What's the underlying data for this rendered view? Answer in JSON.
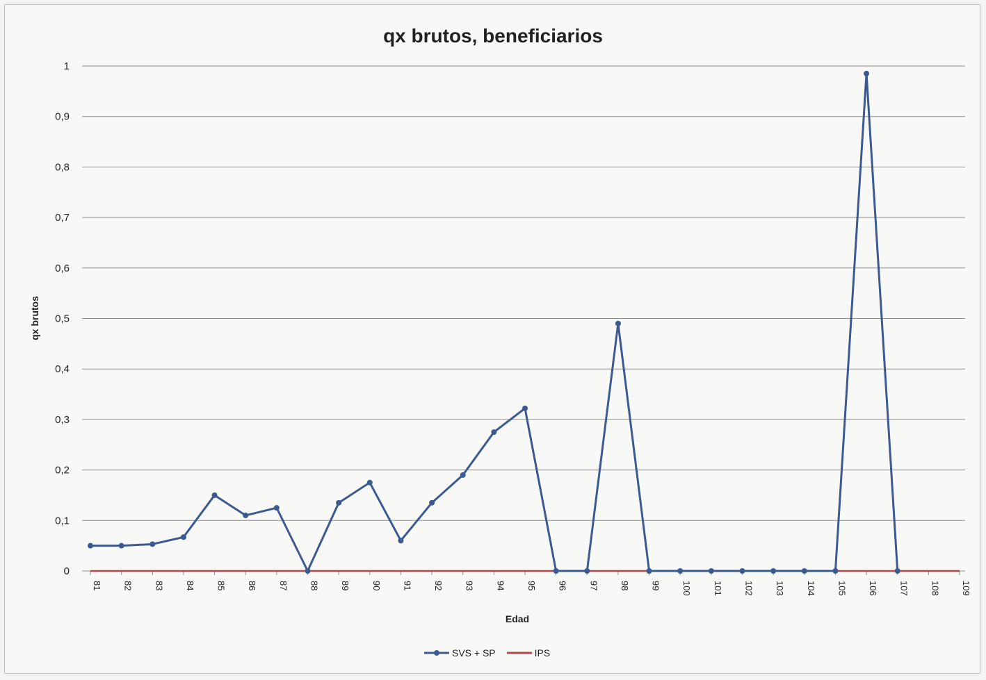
{
  "chart_data": {
    "type": "line",
    "title": "qx brutos, beneficiarios",
    "xlabel": "Edad",
    "ylabel": "qx brutos",
    "x": [
      "81",
      "82",
      "83",
      "84",
      "85",
      "86",
      "87",
      "88",
      "89",
      "90",
      "91",
      "92",
      "93",
      "94",
      "95",
      "96",
      "97",
      "98",
      "99",
      "100",
      "101",
      "102",
      "103",
      "104",
      "105",
      "106",
      "107",
      "108",
      "109"
    ],
    "y_ticks": [
      "0",
      "0,1",
      "0,2",
      "0,3",
      "0,4",
      "0,5",
      "0,6",
      "0,7",
      "0,8",
      "0,9",
      "1"
    ],
    "ylim": [
      0,
      1
    ],
    "grid": true,
    "legend_position": "bottom",
    "series": [
      {
        "name": "SVS + SP",
        "color": "#3c5a92",
        "values": [
          0.05,
          0.05,
          0.053,
          0.067,
          0.15,
          0.11,
          0.125,
          0,
          0.135,
          0.175,
          0.06,
          0.135,
          0.19,
          0.275,
          0.322,
          0,
          0,
          0.49,
          0,
          0,
          0,
          0,
          0,
          0,
          0,
          0.985,
          0,
          null,
          null
        ]
      },
      {
        "name": "IPS",
        "color": "#b5474a",
        "values": [
          0.0,
          0.0,
          0.0,
          0.0,
          0.0,
          0.0,
          0.0,
          0.0,
          0.0,
          0.0,
          0.0,
          0.0,
          0.0,
          0.0,
          0.0,
          0.0,
          0.0,
          0.0,
          0.0,
          0.0,
          0.0,
          0.0,
          0.0,
          0.0,
          0.0,
          0.0,
          0.0,
          0.0,
          0.0
        ]
      }
    ]
  }
}
